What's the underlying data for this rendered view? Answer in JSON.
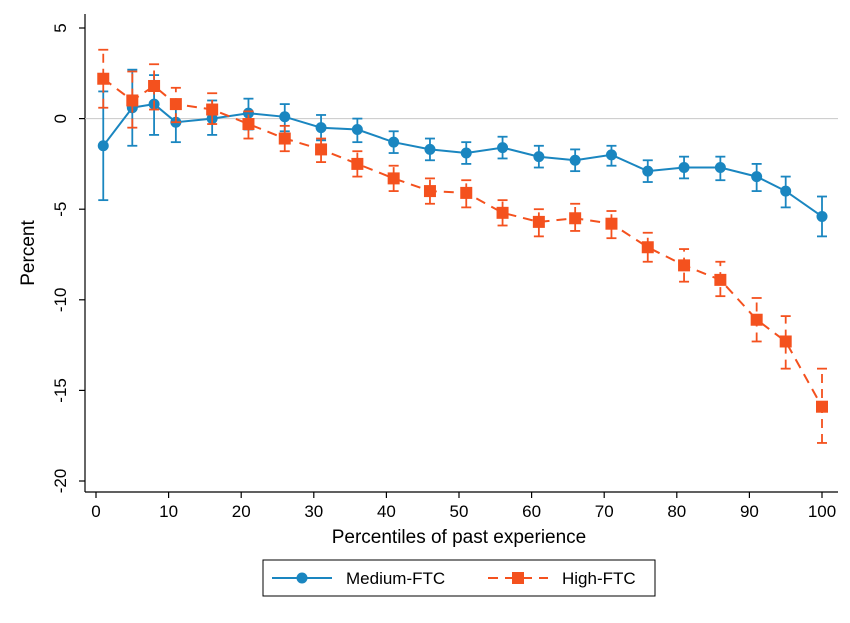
{
  "chart_data": {
    "type": "line",
    "xlabel": "Percentiles of past experience",
    "ylabel": "Percent",
    "xlim": [
      0,
      100
    ],
    "ylim": [
      -20,
      5
    ],
    "xticks": [
      0,
      10,
      20,
      30,
      40,
      50,
      60,
      70,
      80,
      90,
      100
    ],
    "yticks": [
      5,
      0,
      -5,
      -10,
      -15,
      -20
    ],
    "reference_line_y": 0,
    "grid": false,
    "legend_position": "bottom",
    "series": [
      {
        "name": "Medium-FTC",
        "color": "#1a86c0",
        "marker": "circle",
        "line_style": "solid",
        "points": [
          {
            "x": 1,
            "y": -1.5,
            "lo": -4.5,
            "hi": 1.5
          },
          {
            "x": 5,
            "y": 0.6,
            "lo": -1.5,
            "hi": 2.7
          },
          {
            "x": 8,
            "y": 0.8,
            "lo": -0.9,
            "hi": 2.4
          },
          {
            "x": 11,
            "y": -0.2,
            "lo": -1.3,
            "hi": 0.9
          },
          {
            "x": 16,
            "y": 0.0,
            "lo": -0.9,
            "hi": 1.0
          },
          {
            "x": 21,
            "y": 0.3,
            "lo": -0.6,
            "hi": 1.1
          },
          {
            "x": 26,
            "y": 0.1,
            "lo": -0.7,
            "hi": 0.8
          },
          {
            "x": 31,
            "y": -0.5,
            "lo": -1.2,
            "hi": 0.2
          },
          {
            "x": 36,
            "y": -0.6,
            "lo": -1.3,
            "hi": 0.0
          },
          {
            "x": 41,
            "y": -1.3,
            "lo": -1.9,
            "hi": -0.7
          },
          {
            "x": 46,
            "y": -1.7,
            "lo": -2.3,
            "hi": -1.1
          },
          {
            "x": 51,
            "y": -1.9,
            "lo": -2.5,
            "hi": -1.3
          },
          {
            "x": 56,
            "y": -1.6,
            "lo": -2.2,
            "hi": -1.0
          },
          {
            "x": 61,
            "y": -2.1,
            "lo": -2.7,
            "hi": -1.5
          },
          {
            "x": 66,
            "y": -2.3,
            "lo": -2.9,
            "hi": -1.7
          },
          {
            "x": 71,
            "y": -2.0,
            "lo": -2.6,
            "hi": -1.5
          },
          {
            "x": 76,
            "y": -2.9,
            "lo": -3.5,
            "hi": -2.3
          },
          {
            "x": 81,
            "y": -2.7,
            "lo": -3.3,
            "hi": -2.1
          },
          {
            "x": 86,
            "y": -2.7,
            "lo": -3.4,
            "hi": -2.1
          },
          {
            "x": 91,
            "y": -3.2,
            "lo": -4.0,
            "hi": -2.5
          },
          {
            "x": 95,
            "y": -4.0,
            "lo": -4.9,
            "hi": -3.2
          },
          {
            "x": 100,
            "y": -5.4,
            "lo": -6.5,
            "hi": -4.3
          }
        ]
      },
      {
        "name": "High-FTC",
        "color": "#f4511e",
        "marker": "square",
        "line_style": "dashed",
        "points": [
          {
            "x": 1,
            "y": 2.2,
            "lo": 0.6,
            "hi": 3.8
          },
          {
            "x": 5,
            "y": 1.0,
            "lo": -0.5,
            "hi": 2.6
          },
          {
            "x": 8,
            "y": 1.8,
            "lo": 0.5,
            "hi": 3.0
          },
          {
            "x": 11,
            "y": 0.8,
            "lo": -0.2,
            "hi": 1.7
          },
          {
            "x": 16,
            "y": 0.5,
            "lo": -0.3,
            "hi": 1.4
          },
          {
            "x": 21,
            "y": -0.3,
            "lo": -1.1,
            "hi": 0.4
          },
          {
            "x": 26,
            "y": -1.1,
            "lo": -1.8,
            "hi": -0.4
          },
          {
            "x": 31,
            "y": -1.7,
            "lo": -2.4,
            "hi": -1.1
          },
          {
            "x": 36,
            "y": -2.5,
            "lo": -3.2,
            "hi": -1.8
          },
          {
            "x": 41,
            "y": -3.3,
            "lo": -4.0,
            "hi": -2.6
          },
          {
            "x": 46,
            "y": -4.0,
            "lo": -4.7,
            "hi": -3.3
          },
          {
            "x": 51,
            "y": -4.1,
            "lo": -4.9,
            "hi": -3.4
          },
          {
            "x": 56,
            "y": -5.2,
            "lo": -5.9,
            "hi": -4.5
          },
          {
            "x": 61,
            "y": -5.7,
            "lo": -6.5,
            "hi": -5.0
          },
          {
            "x": 66,
            "y": -5.5,
            "lo": -6.2,
            "hi": -4.7
          },
          {
            "x": 71,
            "y": -5.8,
            "lo": -6.6,
            "hi": -5.1
          },
          {
            "x": 76,
            "y": -7.1,
            "lo": -7.9,
            "hi": -6.3
          },
          {
            "x": 81,
            "y": -8.1,
            "lo": -9.0,
            "hi": -7.2
          },
          {
            "x": 86,
            "y": -8.9,
            "lo": -9.8,
            "hi": -7.9
          },
          {
            "x": 91,
            "y": -11.1,
            "lo": -12.3,
            "hi": -9.9
          },
          {
            "x": 95,
            "y": -12.3,
            "lo": -13.8,
            "hi": -10.9
          },
          {
            "x": 100,
            "y": -15.9,
            "lo": -17.9,
            "hi": -13.8
          }
        ]
      }
    ]
  }
}
